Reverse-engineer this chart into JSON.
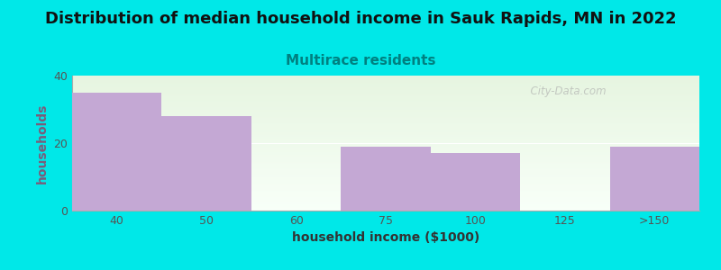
{
  "title": "Distribution of median household income in Sauk Rapids, MN in 2022",
  "subtitle": "Multirace residents",
  "xlabel": "household income ($1000)",
  "ylabel": "households",
  "categories": [
    "40",
    "50",
    "60",
    "75",
    "100",
    "125",
    ">150"
  ],
  "values": [
    35,
    28,
    0,
    19,
    17,
    0,
    19
  ],
  "bar_color": "#c4a8d4",
  "background_color": "#00e8e8",
  "plot_bg_color_top": "#e6f5e0",
  "plot_bg_color_bottom": "#f8fff8",
  "ylim": [
    0,
    40
  ],
  "yticks": [
    0,
    20,
    40
  ],
  "title_fontsize": 13,
  "subtitle_fontsize": 11,
  "subtitle_color": "#008080",
  "axis_label_fontsize": 10,
  "tick_fontsize": 9,
  "watermark": "  City-Data.com",
  "ylabel_color": "#7a5c7a"
}
